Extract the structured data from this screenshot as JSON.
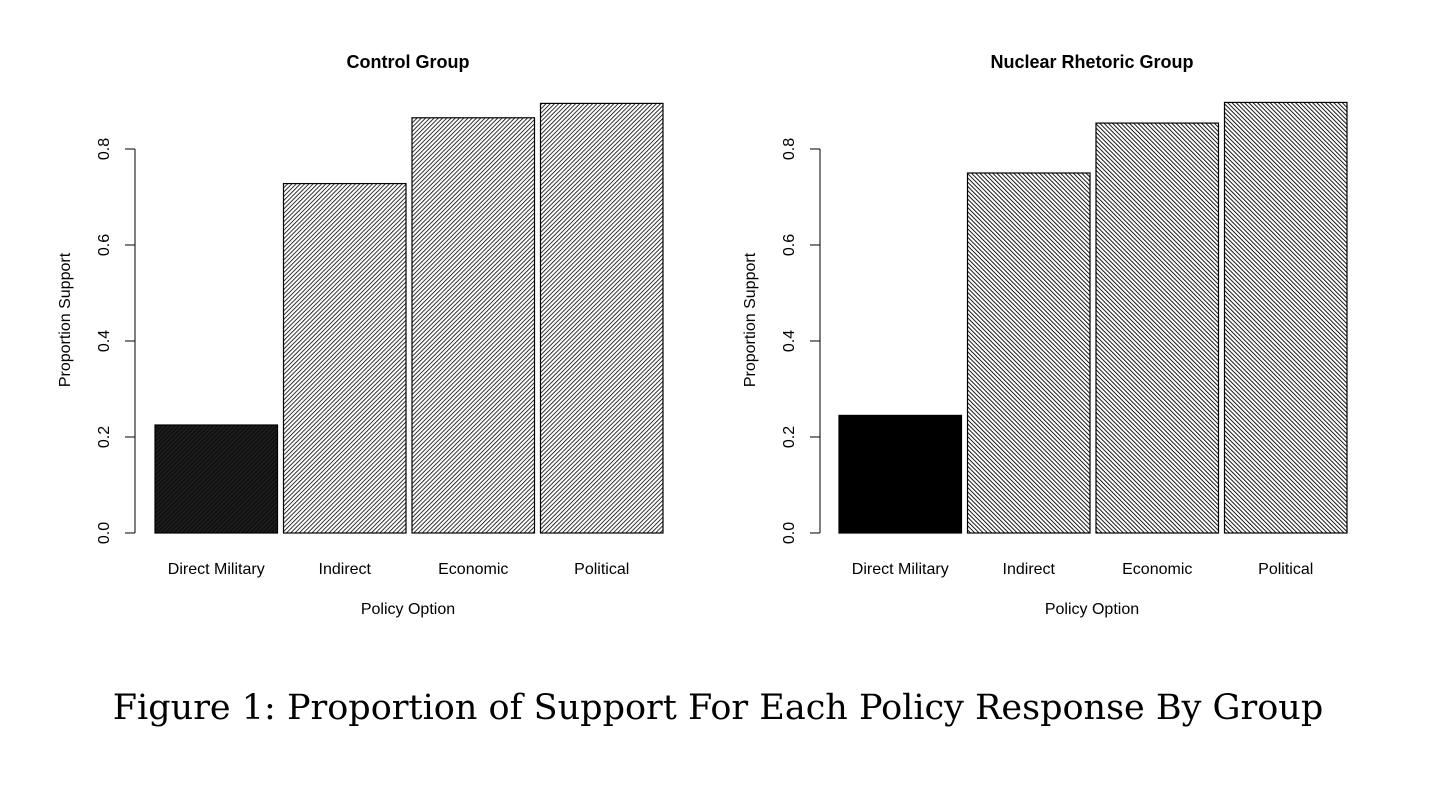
{
  "figure": {
    "caption": "Figure 1: Proportion of Support For Each Policy Response By Group"
  },
  "chart_data": [
    {
      "type": "bar",
      "title": "Control Group",
      "xlabel": "Policy Option",
      "ylabel": "Proportion Support",
      "categories": [
        "Direct Military",
        "Indirect",
        "Economic",
        "Political"
      ],
      "values": [
        0.225,
        0.728,
        0.865,
        0.895
      ],
      "yticks": [
        0.0,
        0.2,
        0.4,
        0.6,
        0.8
      ],
      "ytick_labels": [
        "0.0",
        "0.2",
        "0.4",
        "0.6",
        "0.8"
      ],
      "ylim": [
        0,
        0.9
      ],
      "grid": false,
      "legend": "none",
      "colors": [
        "#111111",
        "#555555",
        "#555555",
        "#555555"
      ]
    },
    {
      "type": "bar",
      "title": "Nuclear Rhetoric Group",
      "xlabel": "Policy Option",
      "ylabel": "Proportion Support",
      "categories": [
        "Direct Military",
        "Indirect",
        "Economic",
        "Political"
      ],
      "values": [
        0.245,
        0.75,
        0.854,
        0.897
      ],
      "yticks": [
        0.0,
        0.2,
        0.4,
        0.6,
        0.8
      ],
      "ytick_labels": [
        "0.0",
        "0.2",
        "0.4",
        "0.6",
        "0.8"
      ],
      "ylim": [
        0,
        0.9
      ],
      "grid": false,
      "legend": "none",
      "colors": [
        "#000000",
        "#444444",
        "#444444",
        "#444444"
      ]
    }
  ]
}
